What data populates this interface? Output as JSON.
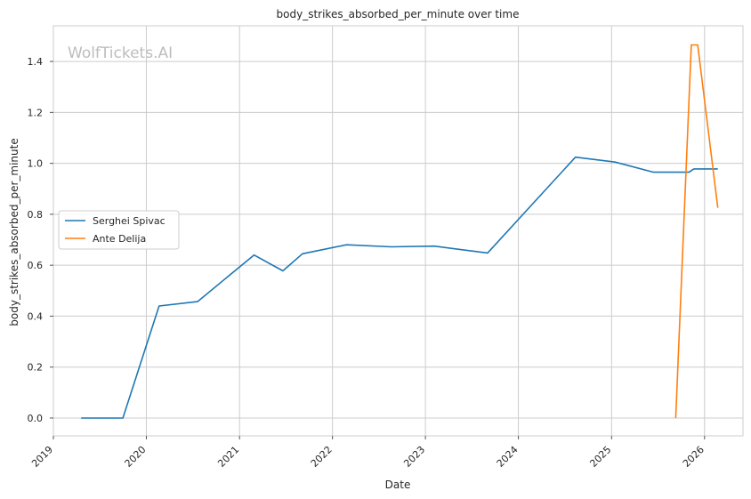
{
  "watermark": "WolfTickets.AI",
  "chart_data": {
    "type": "line",
    "title": "body_strikes_absorbed_per_minute over time",
    "xlabel": "Date",
    "ylabel": "body_strikes_absorbed_per_minute",
    "x_ticks": [
      "2019",
      "2020",
      "2021",
      "2022",
      "2023",
      "2024",
      "2025",
      "2026"
    ],
    "y_ticks": [
      "0.0",
      "0.2",
      "0.4",
      "0.6",
      "0.8",
      "1.0",
      "1.2",
      "1.4"
    ],
    "xlim": [
      "2019-01-01",
      "2026-06-01"
    ],
    "ylim": [
      -0.07,
      1.54
    ],
    "grid": true,
    "legend_position": "center-left",
    "series": [
      {
        "name": "Serghei Spivac",
        "color": "#1f77b4",
        "points": [
          [
            "2019-04-20",
            0.0
          ],
          [
            "2019-10-01",
            0.0
          ],
          [
            "2020-02-20",
            0.44
          ],
          [
            "2020-07-20",
            0.457
          ],
          [
            "2021-02-27",
            0.64
          ],
          [
            "2021-06-20",
            0.578
          ],
          [
            "2021-09-05",
            0.645
          ],
          [
            "2022-02-25",
            0.68
          ],
          [
            "2022-08-20",
            0.672
          ],
          [
            "2023-02-05",
            0.675
          ],
          [
            "2023-09-02",
            0.648
          ],
          [
            "2024-08-12",
            1.024
          ],
          [
            "2025-01-15",
            1.005
          ],
          [
            "2025-06-15",
            0.965
          ],
          [
            "2025-11-01",
            0.965
          ],
          [
            "2025-11-20",
            0.978
          ],
          [
            "2026-02-22",
            0.978
          ]
        ]
      },
      {
        "name": "Ante Delija",
        "color": "#ff7f0e",
        "points": [
          [
            "2025-09-10",
            0.0
          ],
          [
            "2025-11-10",
            1.465
          ],
          [
            "2025-12-05",
            1.465
          ],
          [
            "2026-02-22",
            0.825
          ]
        ]
      }
    ]
  }
}
